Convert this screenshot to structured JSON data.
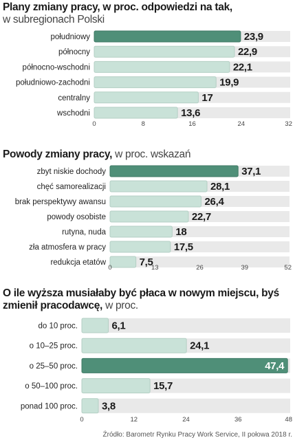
{
  "chart_data": [
    {
      "type": "bar",
      "title": "Plany zmiany pracy, w proc. odpowiedzi na tak,",
      "subtitle": "w subregionach Polski",
      "categories": [
        "południowy",
        "północny",
        "północno-wschodni",
        "południowo-zachodni",
        "centralny",
        "wschodni"
      ],
      "values": [
        23.9,
        22.9,
        22.1,
        19.9,
        17,
        13.6
      ],
      "value_labels": [
        "23,9",
        "22,9",
        "22,1",
        "19,9",
        "17",
        "13,6"
      ],
      "xlim": [
        0,
        32
      ],
      "ticks": [
        "0",
        "8",
        "16",
        "24",
        "32"
      ],
      "highlight_index": 0
    },
    {
      "type": "bar",
      "title": "Powody zmiany pracy,",
      "subtitle": "w proc. wskazań",
      "categories": [
        "zbyt niskie dochody",
        "chęć samorealizacji",
        "brak perspektywy awansu",
        "powody osobiste",
        "rutyna, nuda",
        "zła atmosfera w pracy",
        "redukcja etatów"
      ],
      "values": [
        37.1,
        28.1,
        26.4,
        22.7,
        18,
        17.5,
        7.5
      ],
      "value_labels": [
        "37,1",
        "28,1",
        "26,4",
        "22,7",
        "18",
        "17,5",
        "7,5"
      ],
      "xlim": [
        0,
        52
      ],
      "ticks": [
        "0",
        "13",
        "26",
        "39",
        "52"
      ],
      "highlight_index": 0
    },
    {
      "type": "bar",
      "title": "O ile wyższa musiałaby być płaca w nowym miejscu, byś zmienił pracodawcę,",
      "subtitle": "w proc.",
      "categories": [
        "do 10 proc.",
        "o 10–25 proc.",
        "o 25–50 proc.",
        "o 50–100 proc.",
        "ponad 100 proc."
      ],
      "values": [
        6.1,
        24.1,
        47.4,
        15.7,
        3.8
      ],
      "value_labels": [
        "6,1",
        "24,1",
        "47,4",
        "15,7",
        "3,8"
      ],
      "xlim": [
        0,
        48
      ],
      "ticks": [
        "0",
        "12",
        "24",
        "36",
        "48"
      ],
      "highlight_index": 2
    }
  ],
  "source": "Źródło: Barometr  Rynku Pracy Work Service, II połowa 2018 r.",
  "colors": {
    "bar": "#c9e2d8",
    "bar_border": "#b4cfc4",
    "highlight": "#4f8f78",
    "highlight_border": "#3f7a65",
    "track": "#e9e9e9"
  }
}
